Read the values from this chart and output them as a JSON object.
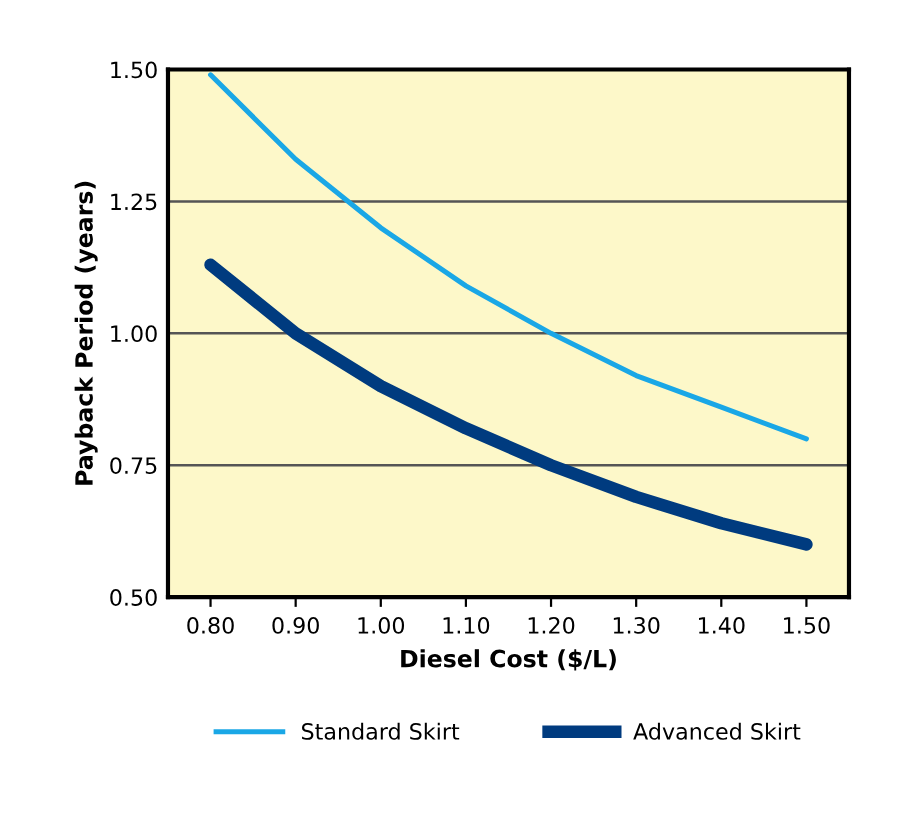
{
  "chart_data": {
    "type": "line",
    "xlabel": "Diesel Cost ($/L)",
    "ylabel": "Payback Period (years)",
    "x": [
      0.8,
      0.9,
      1.0,
      1.1,
      1.2,
      1.3,
      1.4,
      1.5
    ],
    "series": [
      {
        "name": "Standard Skirt",
        "color": "#1aa7e6",
        "values": [
          1.49,
          1.33,
          1.2,
          1.09,
          1.0,
          0.92,
          0.86,
          0.8
        ]
      },
      {
        "name": "Advanced Skirt",
        "color": "#003b7f",
        "values": [
          1.13,
          1.0,
          0.9,
          0.82,
          0.75,
          0.69,
          0.64,
          0.6
        ]
      }
    ],
    "xlim": [
      0.75,
      1.55
    ],
    "ylim": [
      0.5,
      1.5
    ],
    "xticks": [
      {
        "value": 0.8,
        "label": "0.80"
      },
      {
        "value": 0.9,
        "label": "0.90"
      },
      {
        "value": 1.0,
        "label": "1.00"
      },
      {
        "value": 1.1,
        "label": "1.10"
      },
      {
        "value": 1.2,
        "label": "1.20"
      },
      {
        "value": 1.3,
        "label": "1.30"
      },
      {
        "value": 1.4,
        "label": "1.40"
      },
      {
        "value": 1.5,
        "label": "1.50"
      }
    ],
    "yticks": [
      {
        "value": 0.5,
        "label": "0.50"
      },
      {
        "value": 0.75,
        "label": "0.75"
      },
      {
        "value": 1.0,
        "label": "1.00"
      },
      {
        "value": 1.25,
        "label": "1.25"
      },
      {
        "value": 1.5,
        "label": "1.50"
      }
    ],
    "grid": "y",
    "legend": "bottom",
    "line_style": "solid"
  }
}
